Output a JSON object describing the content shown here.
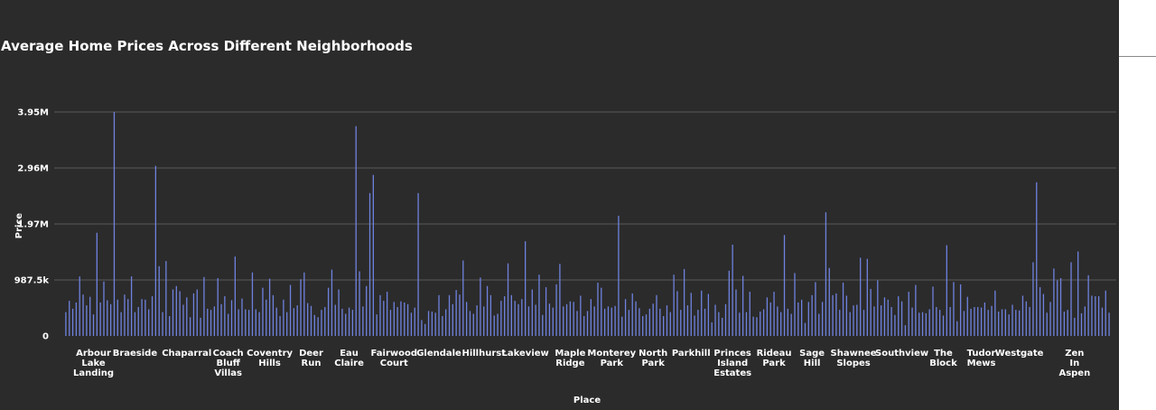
{
  "chart_data": {
    "type": "bar",
    "title": "Average Home Prices Across Different Neighborhoods",
    "xlabel": "Place",
    "ylabel": "Price",
    "ylim": [
      0,
      3950000
    ],
    "grid": true,
    "legend": "none",
    "bar_color": "#6f82df",
    "y_ticks": [
      {
        "value": 0,
        "label": "0"
      },
      {
        "value": 987500,
        "label": "987.5k"
      },
      {
        "value": 1975000,
        "label": "1.97M"
      },
      {
        "value": 2962500,
        "label": "2.96M"
      },
      {
        "value": 3950000,
        "label": "3.95M"
      }
    ],
    "x_tick_labels": [
      {
        "label": "Arbour Lake Landing",
        "index": 8
      },
      {
        "label": "Braeside",
        "index": 20
      },
      {
        "label": "Chaparral",
        "index": 35
      },
      {
        "label": "Coach Bluff Villas",
        "index": 47
      },
      {
        "label": "Coventry Hills",
        "index": 59
      },
      {
        "label": "Deer Run",
        "index": 71
      },
      {
        "label": "Eau Claire",
        "index": 82
      },
      {
        "label": "Fairwood Court",
        "index": 95
      },
      {
        "label": "Glendale",
        "index": 108
      },
      {
        "label": "Hillhurst",
        "index": 121
      },
      {
        "label": "Lakeview",
        "index": 133
      },
      {
        "label": "Maple Ridge",
        "index": 146
      },
      {
        "label": "Monterey Park",
        "index": 158
      },
      {
        "label": "North Park",
        "index": 170
      },
      {
        "label": "Parkhill",
        "index": 181
      },
      {
        "label": "Princes Island Estates",
        "index": 193
      },
      {
        "label": "Rideau Park",
        "index": 205
      },
      {
        "label": "Sage Hill",
        "index": 216
      },
      {
        "label": "Shawnee Slopes",
        "index": 228
      },
      {
        "label": "Southview",
        "index": 242
      },
      {
        "label": "The Block",
        "index": 254
      },
      {
        "label": "Tudor Mews",
        "index": 265
      },
      {
        "label": "Westgate",
        "index": 276
      },
      {
        "label": "Zen In Aspen",
        "index": 292
      }
    ],
    "values": [
      420000,
      620000,
      480000,
      590000,
      1050000,
      730000,
      540000,
      690000,
      380000,
      1820000,
      590000,
      960000,
      630000,
      560000,
      3950000,
      640000,
      420000,
      730000,
      650000,
      1050000,
      420000,
      510000,
      650000,
      640000,
      470000,
      700000,
      3000000,
      1230000,
      420000,
      1320000,
      350000,
      820000,
      880000,
      790000,
      550000,
      680000,
      330000,
      750000,
      820000,
      320000,
      1040000,
      480000,
      460000,
      520000,
      1020000,
      560000,
      700000,
      390000,
      630000,
      1400000,
      470000,
      660000,
      470000,
      460000,
      1120000,
      470000,
      420000,
      850000,
      640000,
      1010000,
      720000,
      500000,
      350000,
      640000,
      420000,
      900000,
      490000,
      540000,
      1000000,
      1120000,
      580000,
      530000,
      370000,
      330000,
      460000,
      510000,
      850000,
      1170000,
      550000,
      820000,
      480000,
      390000,
      500000,
      460000,
      3700000,
      1140000,
      520000,
      880000,
      2520000,
      2840000,
      380000,
      720000,
      620000,
      780000,
      460000,
      600000,
      510000,
      610000,
      590000,
      560000,
      410000,
      500000,
      2520000,
      280000,
      210000,
      440000,
      430000,
      410000,
      720000,
      350000,
      470000,
      720000,
      560000,
      810000,
      730000,
      1330000,
      600000,
      440000,
      390000,
      540000,
      1030000,
      520000,
      880000,
      720000,
      360000,
      390000,
      620000,
      700000,
      1280000,
      720000,
      620000,
      560000,
      650000,
      1670000,
      520000,
      820000,
      550000,
      1080000,
      370000,
      860000,
      570000,
      500000,
      910000,
      1270000,
      520000,
      560000,
      610000,
      600000,
      440000,
      710000,
      350000,
      440000,
      650000,
      520000,
      940000,
      850000,
      480000,
      520000,
      500000,
      530000,
      2120000,
      340000,
      650000,
      460000,
      750000,
      610000,
      490000,
      350000,
      380000,
      480000,
      570000,
      720000,
      480000,
      350000,
      540000,
      420000,
      1080000,
      790000,
      460000,
      1180000,
      540000,
      760000,
      360000,
      460000,
      800000,
      480000,
      740000,
      240000,
      550000,
      420000,
      320000,
      560000,
      1150000,
      1610000,
      820000,
      410000,
      1060000,
      420000,
      780000,
      340000,
      330000,
      430000,
      470000,
      680000,
      590000,
      780000,
      520000,
      420000,
      1780000,
      480000,
      390000,
      1110000,
      590000,
      640000,
      230000,
      600000,
      720000,
      950000,
      390000,
      600000,
      2180000,
      1200000,
      720000,
      750000,
      460000,
      940000,
      710000,
      420000,
      540000,
      550000,
      1380000,
      460000,
      1360000,
      830000,
      520000,
      980000,
      540000,
      680000,
      640000,
      510000,
      370000,
      700000,
      610000,
      190000,
      780000,
      500000,
      900000,
      410000,
      420000,
      400000,
      470000,
      870000,
      510000,
      460000,
      360000,
      1600000,
      510000,
      950000,
      260000,
      910000,
      440000,
      690000,
      480000,
      510000,
      510000,
      500000,
      590000,
      460000,
      530000,
      800000,
      430000,
      470000,
      470000,
      380000,
      550000,
      460000,
      450000,
      710000,
      610000,
      510000,
      1300000,
      2710000,
      860000,
      740000,
      410000,
      600000,
      1190000,
      980000,
      1020000,
      430000,
      460000,
      1300000,
      320000,
      1490000,
      400000,
      520000,
      1070000,
      710000,
      700000,
      700000,
      500000,
      800000,
      410000
    ]
  }
}
